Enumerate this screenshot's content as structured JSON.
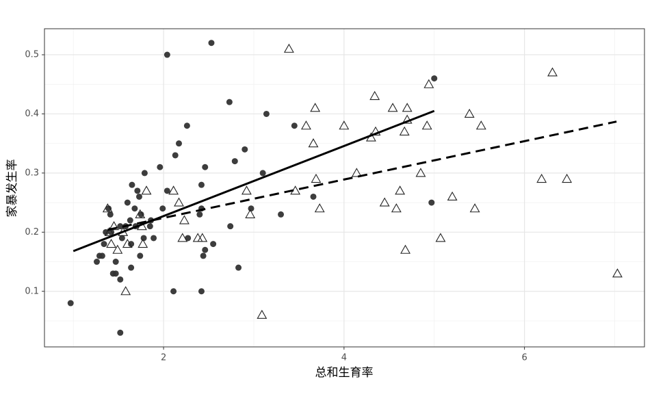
{
  "chart_data": {
    "type": "scatter",
    "xlabel": "总和生育率",
    "ylabel": "家暴发生率",
    "xlim": [
      0.68,
      7.33
    ],
    "ylim": [
      0.006,
      0.544
    ],
    "xticks": [
      2,
      4,
      6
    ],
    "yticks": [
      0.1,
      0.2,
      0.3,
      0.4,
      0.5
    ],
    "grid": true,
    "series": [
      {
        "marker": "circle",
        "color": "#333333",
        "x": [
          0.97,
          2.04,
          2.53,
          2.73,
          3.14,
          3.45,
          5.0,
          2.26,
          2.17,
          2.13,
          2.9,
          2.79,
          1.96,
          2.46,
          3.1,
          1.79,
          2.04,
          1.65,
          2.42,
          1.71,
          1.73,
          3.66,
          1.6,
          4.97,
          1.99,
          2.42,
          2.97,
          1.68,
          1.39,
          1.41,
          1.75,
          2.4,
          3.3,
          1.63,
          1.86,
          1.52,
          1.58,
          1.85,
          2.74,
          1.36,
          1.42,
          1.69,
          1.54,
          1.89,
          2.27,
          1.78,
          1.34,
          1.64,
          2.55,
          2.46,
          1.74,
          1.29,
          2.44,
          1.32,
          1.26,
          1.47,
          1.64,
          2.83,
          1.44,
          1.47,
          1.52,
          2.11,
          2.42,
          1.52
        ],
        "values": [
          0.08,
          0.5,
          0.52,
          0.42,
          0.4,
          0.38,
          0.46,
          0.38,
          0.35,
          0.33,
          0.34,
          0.32,
          0.31,
          0.31,
          0.3,
          0.3,
          0.27,
          0.28,
          0.28,
          0.27,
          0.26,
          0.26,
          0.25,
          0.25,
          0.24,
          0.24,
          0.24,
          0.24,
          0.24,
          0.23,
          0.23,
          0.23,
          0.23,
          0.22,
          0.22,
          0.21,
          0.21,
          0.21,
          0.21,
          0.2,
          0.2,
          0.21,
          0.19,
          0.19,
          0.19,
          0.19,
          0.18,
          0.18,
          0.18,
          0.17,
          0.16,
          0.16,
          0.16,
          0.16,
          0.15,
          0.15,
          0.14,
          0.14,
          0.13,
          0.13,
          0.12,
          0.1,
          0.1,
          0.03
        ]
      },
      {
        "marker": "triangle",
        "color": "#222222",
        "x": [
          3.39,
          6.31,
          4.94,
          4.34,
          3.68,
          4.54,
          4.7,
          5.39,
          4.7,
          3.58,
          4.0,
          4.92,
          5.52,
          4.35,
          4.67,
          4.3,
          3.66,
          4.14,
          4.85,
          6.19,
          6.47,
          3.69,
          2.11,
          2.92,
          3.46,
          4.62,
          1.81,
          5.2,
          2.17,
          4.45,
          3.73,
          4.58,
          5.45,
          1.38,
          2.96,
          1.74,
          2.23,
          1.45,
          1.76,
          1.4,
          1.55,
          2.21,
          2.38,
          2.43,
          5.07,
          1.42,
          1.77,
          1.6,
          1.49,
          4.68,
          1.58,
          3.09,
          7.03
        ],
        "values": [
          0.51,
          0.47,
          0.45,
          0.43,
          0.41,
          0.41,
          0.41,
          0.4,
          0.39,
          0.38,
          0.38,
          0.38,
          0.38,
          0.37,
          0.37,
          0.36,
          0.35,
          0.3,
          0.3,
          0.29,
          0.29,
          0.29,
          0.27,
          0.27,
          0.27,
          0.27,
          0.27,
          0.26,
          0.25,
          0.25,
          0.24,
          0.24,
          0.24,
          0.24,
          0.23,
          0.23,
          0.22,
          0.21,
          0.21,
          0.2,
          0.2,
          0.19,
          0.19,
          0.19,
          0.19,
          0.18,
          0.18,
          0.18,
          0.17,
          0.17,
          0.1,
          0.06,
          0.13
        ]
      },
      {
        "marker": "line",
        "dash": "solid",
        "color": "#000000",
        "x": [
          1.0,
          5.0
        ],
        "values": [
          0.168,
          0.405
        ]
      },
      {
        "marker": "line",
        "dash": "dashed",
        "color": "#000000",
        "x": [
          1.38,
          7.02
        ],
        "values": [
          0.204,
          0.387
        ]
      }
    ]
  }
}
